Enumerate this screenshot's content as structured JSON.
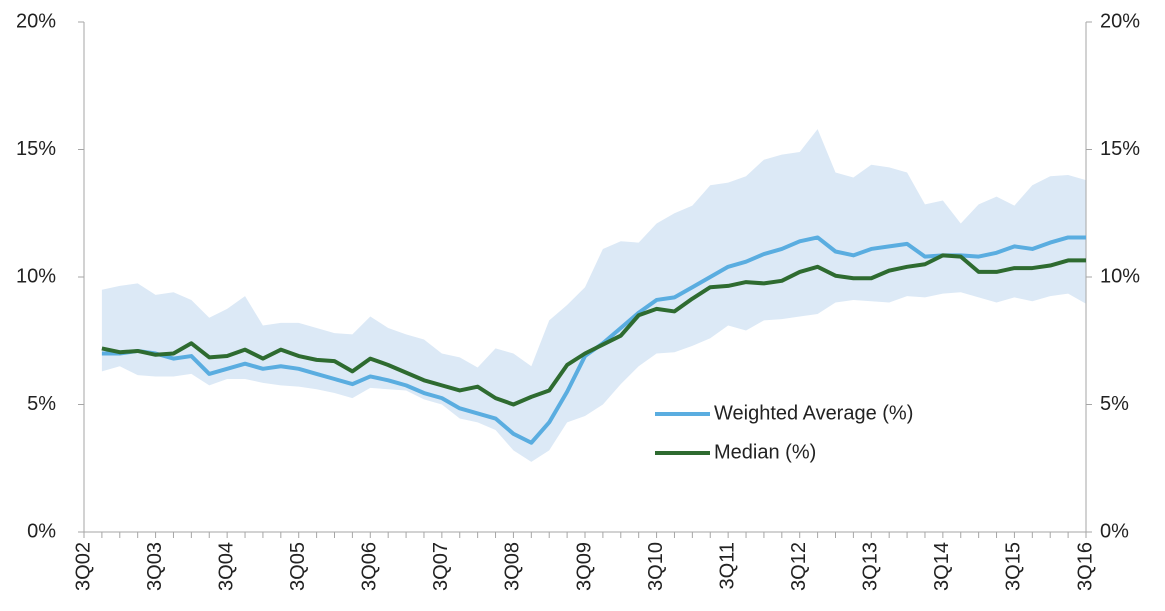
{
  "chart_data": {
    "type": "line",
    "categories": [
      "3Q02",
      null,
      null,
      null,
      "3Q03",
      null,
      null,
      null,
      "3Q04",
      null,
      null,
      null,
      "3Q05",
      null,
      null,
      null,
      "3Q06",
      null,
      null,
      null,
      "3Q07",
      null,
      null,
      null,
      "3Q08",
      null,
      null,
      null,
      "3Q09",
      null,
      null,
      null,
      "3Q10",
      null,
      null,
      null,
      "3Q11",
      null,
      null,
      null,
      "3Q12",
      null,
      null,
      null,
      "3Q13",
      null,
      null,
      null,
      "3Q14",
      null,
      null,
      null,
      "3Q15",
      null,
      null,
      null,
      "3Q16"
    ],
    "band": {
      "color": "#dce9f6",
      "upper": [
        null,
        9.5,
        9.65,
        9.75,
        9.3,
        9.4,
        9.1,
        8.4,
        8.75,
        9.25,
        8.1,
        8.2,
        8.2,
        8.0,
        7.8,
        7.75,
        8.45,
        8.0,
        7.75,
        7.55,
        7.0,
        6.85,
        6.45,
        7.2,
        7.0,
        6.5,
        8.3,
        8.9,
        9.6,
        11.1,
        11.4,
        11.35,
        12.1,
        12.5,
        12.8,
        13.6,
        13.7,
        13.95,
        14.6,
        14.8,
        14.9,
        15.8,
        14.1,
        13.9,
        14.4,
        14.3,
        14.1,
        12.85,
        13.0,
        12.1,
        12.85,
        13.15,
        12.8,
        13.6,
        13.95,
        14.0,
        13.8
      ],
      "lower": [
        null,
        6.3,
        6.5,
        6.15,
        6.1,
        6.1,
        6.2,
        5.75,
        6.0,
        6.0,
        5.85,
        5.75,
        5.7,
        5.6,
        5.45,
        5.25,
        5.65,
        5.6,
        5.55,
        5.2,
        5.0,
        4.45,
        4.3,
        4.0,
        3.2,
        2.75,
        3.2,
        4.3,
        4.55,
        5.0,
        5.8,
        6.5,
        7.0,
        7.05,
        7.3,
        7.6,
        8.1,
        7.9,
        8.3,
        8.35,
        8.45,
        8.55,
        9.0,
        9.1,
        9.05,
        9.0,
        9.25,
        9.2,
        9.35,
        9.4,
        9.2,
        9.0,
        9.2,
        9.05,
        9.25,
        9.35,
        8.95
      ]
    },
    "series": [
      {
        "name": "Weighted Average (%)",
        "color": "#5aade0",
        "values": [
          null,
          7.0,
          7.0,
          7.1,
          7.0,
          6.8,
          6.9,
          6.2,
          6.4,
          6.6,
          6.4,
          6.5,
          6.4,
          6.2,
          6.0,
          5.8,
          6.1,
          5.95,
          5.75,
          5.45,
          5.25,
          4.85,
          4.65,
          4.45,
          3.85,
          3.5,
          4.3,
          5.5,
          6.9,
          7.4,
          8.0,
          8.6,
          9.1,
          9.2,
          9.6,
          10.0,
          10.4,
          10.6,
          10.9,
          11.1,
          11.4,
          11.55,
          11.0,
          10.85,
          11.1,
          11.2,
          11.3,
          10.8,
          10.85,
          10.85,
          10.8,
          10.95,
          11.2,
          11.1,
          11.35,
          11.55,
          11.55
        ]
      },
      {
        "name": "Median (%)",
        "color": "#2e6b30",
        "values": [
          null,
          7.2,
          7.05,
          7.1,
          6.95,
          7.0,
          7.4,
          6.85,
          6.9,
          7.15,
          6.8,
          7.15,
          6.9,
          6.75,
          6.7,
          6.3,
          6.8,
          6.55,
          6.25,
          5.95,
          5.75,
          5.55,
          5.7,
          5.25,
          5.0,
          5.3,
          5.55,
          6.55,
          7.0,
          7.35,
          7.7,
          8.5,
          8.75,
          8.65,
          9.15,
          9.6,
          9.65,
          9.8,
          9.75,
          9.85,
          10.2,
          10.4,
          10.05,
          9.95,
          9.95,
          10.25,
          10.4,
          10.5,
          10.85,
          10.8,
          10.2,
          10.2,
          10.35,
          10.35,
          10.45,
          10.65,
          10.65
        ]
      }
    ],
    "ylim": [
      0,
      20
    ],
    "yticks": [
      {
        "value": 0,
        "label": "0%"
      },
      {
        "value": 5,
        "label": "5%"
      },
      {
        "value": 10,
        "label": "10%"
      },
      {
        "value": 15,
        "label": "15%"
      },
      {
        "value": 20,
        "label": "20%"
      }
    ],
    "y2lim": [
      0,
      20
    ],
    "y2ticks": [
      {
        "value": 0,
        "label": "0%"
      },
      {
        "value": 5,
        "label": "5%"
      },
      {
        "value": 10,
        "label": "10%"
      },
      {
        "value": 15,
        "label": "15%"
      },
      {
        "value": 20,
        "label": "20%"
      }
    ],
    "grid": false
  }
}
